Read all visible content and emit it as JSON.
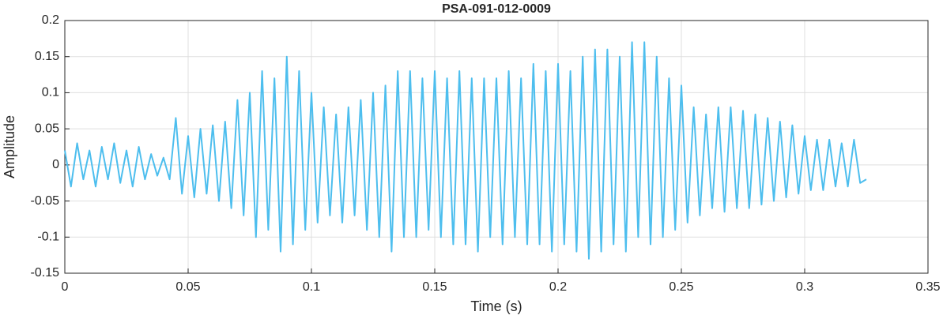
{
  "chart_data": {
    "type": "line",
    "title": "PSA-091-012-0009",
    "xlabel": "Time (s)",
    "ylabel": "Amplitude",
    "x": [
      0,
      0.0025,
      0.005,
      0.0075,
      0.01,
      0.0125,
      0.015,
      0.0175,
      0.02,
      0.0225,
      0.025,
      0.0275,
      0.03,
      0.0325,
      0.035,
      0.0375,
      0.04,
      0.0425,
      0.045,
      0.0475,
      0.05,
      0.0525,
      0.055,
      0.0575,
      0.06,
      0.0625,
      0.065,
      0.0675,
      0.07,
      0.0725,
      0.075,
      0.0775,
      0.08,
      0.0825,
      0.085,
      0.0875,
      0.09,
      0.0925,
      0.095,
      0.0975,
      0.1,
      0.1025,
      0.105,
      0.1075,
      0.11,
      0.1125,
      0.115,
      0.1175,
      0.12,
      0.1225,
      0.125,
      0.1275,
      0.13,
      0.1325,
      0.135,
      0.1375,
      0.14,
      0.1425,
      0.145,
      0.1475,
      0.15,
      0.1525,
      0.155,
      0.1575,
      0.16,
      0.1625,
      0.165,
      0.1675,
      0.17,
      0.1725,
      0.175,
      0.1775,
      0.18,
      0.1825,
      0.185,
      0.1875,
      0.19,
      0.1925,
      0.195,
      0.1975,
      0.2,
      0.2025,
      0.205,
      0.2075,
      0.21,
      0.2125,
      0.215,
      0.2175,
      0.22,
      0.2225,
      0.225,
      0.2275,
      0.23,
      0.2325,
      0.235,
      0.2375,
      0.24,
      0.2425,
      0.245,
      0.2475,
      0.25,
      0.2525,
      0.255,
      0.2575,
      0.26,
      0.2625,
      0.265,
      0.2675,
      0.27,
      0.2725,
      0.275,
      0.2775,
      0.28,
      0.2825,
      0.285,
      0.2875,
      0.29,
      0.2925,
      0.295,
      0.2975,
      0.3,
      0.3025,
      0.305,
      0.3075,
      0.31,
      0.3125,
      0.315,
      0.3175,
      0.32,
      0.3225,
      0.325
    ],
    "series": [
      {
        "name": "Amplitude",
        "color": "#4dbeee",
        "values": [
          0.02,
          -0.03,
          0.03,
          -0.02,
          0.02,
          -0.03,
          0.025,
          -0.02,
          0.03,
          -0.025,
          0.02,
          -0.03,
          0.025,
          -0.02,
          0.015,
          -0.015,
          0.01,
          -0.02,
          0.065,
          -0.04,
          0.04,
          -0.045,
          0.05,
          -0.04,
          0.055,
          -0.05,
          0.06,
          -0.06,
          0.09,
          -0.07,
          0.1,
          -0.1,
          0.13,
          -0.09,
          0.12,
          -0.12,
          0.15,
          -0.11,
          0.13,
          -0.09,
          0.1,
          -0.08,
          0.08,
          -0.07,
          0.07,
          -0.08,
          0.08,
          -0.07,
          0.09,
          -0.09,
          0.1,
          -0.1,
          0.11,
          -0.12,
          0.13,
          -0.1,
          0.13,
          -0.1,
          0.12,
          -0.09,
          0.13,
          -0.1,
          0.12,
          -0.11,
          0.13,
          -0.11,
          0.12,
          -0.12,
          0.12,
          -0.1,
          0.12,
          -0.11,
          0.13,
          -0.1,
          0.12,
          -0.11,
          0.14,
          -0.11,
          0.13,
          -0.12,
          0.14,
          -0.11,
          0.13,
          -0.12,
          0.15,
          -0.13,
          0.16,
          -0.12,
          0.16,
          -0.11,
          0.15,
          -0.12,
          0.17,
          -0.1,
          0.17,
          -0.11,
          0.15,
          -0.1,
          0.12,
          -0.09,
          0.11,
          -0.08,
          0.08,
          -0.07,
          0.07,
          -0.06,
          0.08,
          -0.065,
          0.08,
          -0.06,
          0.075,
          -0.06,
          0.07,
          -0.055,
          0.065,
          -0.05,
          0.06,
          -0.045,
          0.055,
          -0.04,
          0.04,
          -0.035,
          0.035,
          -0.035,
          0.035,
          -0.03,
          0.03,
          -0.03,
          0.035,
          -0.025,
          -0.02
        ]
      }
    ],
    "xlim": [
      0,
      0.35
    ],
    "xticks": [
      0,
      0.05,
      0.1,
      0.15,
      0.2,
      0.25,
      0.3,
      0.35
    ],
    "ylim": [
      -0.15,
      0.2
    ],
    "yticks": [
      -0.15,
      -0.1,
      -0.05,
      0,
      0.05,
      0.1,
      0.15,
      0.2
    ],
    "grid": true
  }
}
